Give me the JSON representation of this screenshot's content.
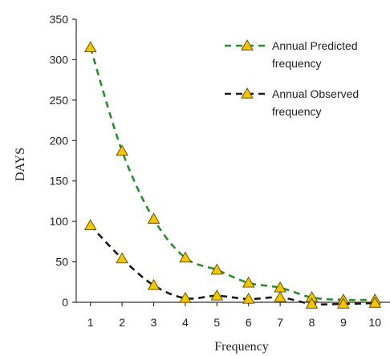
{
  "chart_data": {
    "type": "line",
    "title": "",
    "xlabel": "Frequency",
    "ylabel": "DAYS",
    "x": [
      1,
      2,
      3,
      4,
      5,
      6,
      7,
      8,
      9,
      10
    ],
    "xlim": [
      0.55,
      10.5
    ],
    "ylim": [
      0,
      350
    ],
    "yticks": [
      0,
      50,
      100,
      150,
      200,
      250,
      300,
      350
    ],
    "grid": false,
    "legend_position": "top-right",
    "series": [
      {
        "name": "Annual Predicted frequency",
        "name_lines": [
          "Annual Predicted",
          "frequency"
        ],
        "color": "#2e8b2e",
        "line_style": "dashed",
        "marker": "triangle",
        "marker_color": "#f5c400",
        "values": [
          315,
          187,
          103,
          55,
          40,
          24,
          18,
          6,
          3,
          3
        ]
      },
      {
        "name": "Annual Observed frequency",
        "name_lines": [
          "Annual Observed",
          "frequency"
        ],
        "color": "#1a1a1a",
        "line_style": "dashed",
        "marker": "triangle",
        "marker_color": "#f5c400",
        "values": [
          95,
          54,
          21,
          5,
          8,
          4,
          6,
          -2,
          -2,
          -1
        ]
      }
    ]
  }
}
